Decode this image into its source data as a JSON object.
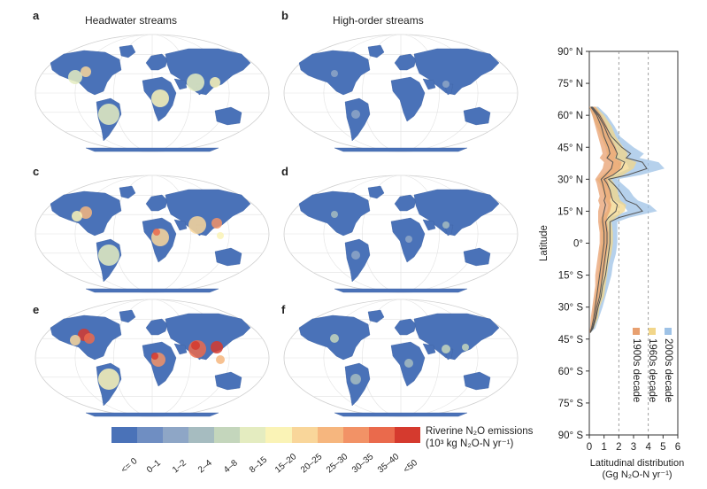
{
  "panels": {
    "a": {
      "letter": "a",
      "title": "Headwater streams"
    },
    "b": {
      "letter": "b",
      "title": "High-order streams"
    },
    "c": {
      "letter": "c"
    },
    "d": {
      "letter": "d"
    },
    "e": {
      "letter": "e"
    },
    "f": {
      "letter": "f"
    }
  },
  "legend": {
    "title_line1": "Riverine N₂O emissions",
    "title_line2": "(10³ kg N₂O-N yr⁻¹)",
    "classes": [
      {
        "label": "<= 0",
        "color": "#4a72b8"
      },
      {
        "label": "0–1",
        "color": "#6f8ec2"
      },
      {
        "label": "1–2",
        "color": "#8ea6c6"
      },
      {
        "label": "2–4",
        "color": "#a6bcc0"
      },
      {
        "label": "4–8",
        "color": "#c4d6bc"
      },
      {
        "label": "8–15",
        "color": "#e4ecc0"
      },
      {
        "label": "15–20",
        "color": "#faf3b6"
      },
      {
        "label": "20–25",
        "color": "#f9d69a"
      },
      {
        "label": "25–30",
        "color": "#f6b67e"
      },
      {
        "label": "30–35",
        "color": "#f29266"
      },
      {
        "label": "35–40",
        "color": "#ea6a4c"
      },
      {
        "label": "<50",
        "color": "#d53a2e"
      }
    ]
  },
  "chart_data": {
    "type": "line",
    "title": "",
    "xlabel_line1": "Latitudinal distribution",
    "xlabel_line2": "(Gg N₂O-N yr⁻¹)",
    "ylabel": "Latitude",
    "xlim": [
      0,
      6
    ],
    "ylim": [
      -90,
      90
    ],
    "x_ticks": [
      "0",
      "1",
      "2",
      "3",
      "4",
      "5",
      "6"
    ],
    "y_ticks": [
      {
        "value": 90,
        "label": "90° N"
      },
      {
        "value": 75,
        "label": "75° N"
      },
      {
        "value": 60,
        "label": "60° N"
      },
      {
        "value": 45,
        "label": "45° N"
      },
      {
        "value": 30,
        "label": "30° N"
      },
      {
        "value": 15,
        "label": "15° N"
      },
      {
        "value": 0,
        "label": "0°"
      },
      {
        "value": -15,
        "label": "15° S"
      },
      {
        "value": -30,
        "label": "30° S"
      },
      {
        "value": -45,
        "label": "45° S"
      },
      {
        "value": -60,
        "label": "60° S"
      },
      {
        "value": -75,
        "label": "75° S"
      },
      {
        "value": -90,
        "label": "90° S"
      }
    ],
    "gridlines_x": [
      2,
      4
    ],
    "latitudes": [
      64,
      60,
      55,
      50,
      45,
      42,
      40,
      38,
      35,
      32,
      30,
      28,
      25,
      22,
      20,
      18,
      15,
      12,
      10,
      5,
      0,
      -5,
      -10,
      -15,
      -20,
      -25,
      -30,
      -35,
      -40,
      -42
    ],
    "series": [
      {
        "name": "1900s decade",
        "color": "#e8a070",
        "values": [
          0.1,
          0.5,
          0.8,
          1.0,
          1.3,
          1.4,
          1.2,
          1.6,
          1.5,
          1.1,
          0.8,
          0.9,
          1.0,
          1.1,
          1.0,
          1.1,
          1.0,
          0.9,
          0.9,
          1.0,
          1.0,
          0.9,
          0.8,
          0.7,
          0.6,
          0.5,
          0.4,
          0.3,
          0.15,
          0.05
        ],
        "band": [
          0.3,
          0.3,
          0.4,
          0.4,
          0.5,
          0.5,
          0.5,
          0.6,
          0.6,
          0.5,
          0.4,
          0.4,
          0.4,
          0.4,
          0.4,
          0.4,
          0.4,
          0.3,
          0.3,
          0.3,
          0.3,
          0.3,
          0.3,
          0.3,
          0.2,
          0.2,
          0.2,
          0.2,
          0.1,
          0.05
        ]
      },
      {
        "name": "1960s decade",
        "color": "#f2d68a",
        "values": [
          0.15,
          0.6,
          1.0,
          1.3,
          1.7,
          1.9,
          1.8,
          2.4,
          2.2,
          1.6,
          1.0,
          1.2,
          1.4,
          1.5,
          1.6,
          1.9,
          1.8,
          1.3,
          1.1,
          1.2,
          1.2,
          1.1,
          1.0,
          0.9,
          0.8,
          0.7,
          0.5,
          0.4,
          0.2,
          0.05
        ],
        "band": [
          0.3,
          0.4,
          0.5,
          0.5,
          0.6,
          0.7,
          0.7,
          0.8,
          0.8,
          0.7,
          0.5,
          0.5,
          0.5,
          0.5,
          0.5,
          0.6,
          0.6,
          0.5,
          0.4,
          0.4,
          0.4,
          0.4,
          0.3,
          0.3,
          0.3,
          0.3,
          0.2,
          0.2,
          0.1,
          0.05
        ]
      },
      {
        "name": "2000s decade",
        "color": "#9ec2e6",
        "values": [
          0.2,
          0.7,
          1.1,
          1.5,
          2.2,
          2.8,
          2.5,
          3.6,
          3.9,
          2.6,
          1.3,
          1.6,
          2.0,
          2.3,
          2.5,
          3.2,
          3.6,
          2.0,
          1.4,
          1.4,
          1.4,
          1.3,
          1.2,
          1.1,
          0.9,
          0.8,
          0.6,
          0.45,
          0.25,
          0.05
        ],
        "band": [
          0.4,
          0.5,
          0.6,
          0.6,
          0.8,
          0.9,
          0.9,
          1.1,
          1.2,
          0.9,
          0.6,
          0.6,
          0.7,
          0.7,
          0.8,
          0.9,
          1.0,
          0.7,
          0.5,
          0.5,
          0.5,
          0.5,
          0.4,
          0.4,
          0.4,
          0.3,
          0.3,
          0.2,
          0.15,
          0.05
        ]
      }
    ]
  }
}
